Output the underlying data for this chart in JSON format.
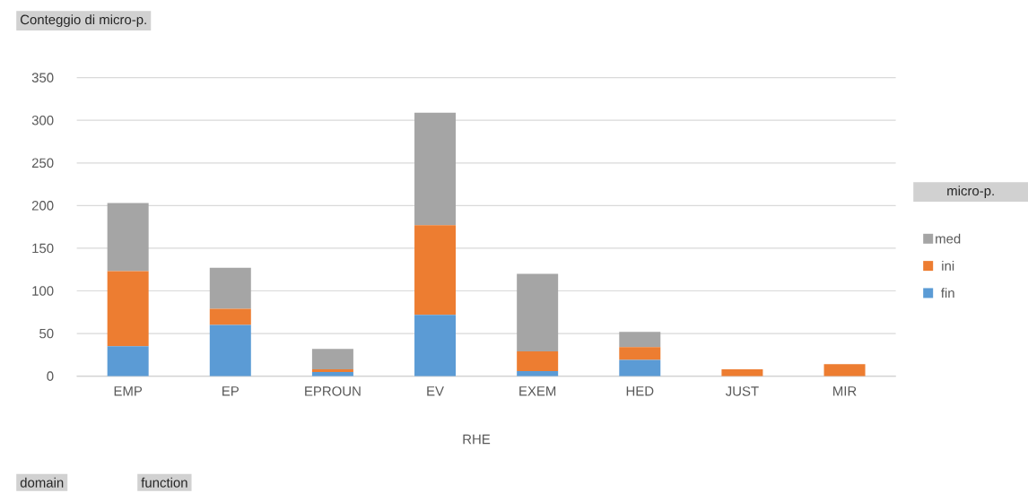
{
  "chart_data": {
    "type": "bar",
    "stacked": true,
    "title": "Conteggio di micro-p.",
    "xlabel": "RHE",
    "legend_title": "micro-p.",
    "categories": [
      "EMP",
      "EP",
      "EPROUN",
      "EV",
      "EXEM",
      "HED",
      "JUST",
      "MIR"
    ],
    "series": [
      {
        "name": "fin",
        "color": "#5b9bd5",
        "values": [
          35,
          60,
          5,
          72,
          6,
          19,
          0,
          0
        ]
      },
      {
        "name": "ini",
        "color": "#ed7d31",
        "values": [
          88,
          19,
          3,
          105,
          23,
          15,
          8,
          14
        ]
      },
      {
        "name": "med",
        "color": "#a5a5a5",
        "values": [
          80,
          48,
          24,
          132,
          91,
          18,
          0,
          0
        ]
      }
    ],
    "ylim": [
      0,
      350
    ],
    "yticks": [
      0,
      50,
      100,
      150,
      200,
      250,
      300,
      350
    ],
    "grid": "y",
    "legend": "right",
    "annotations": [
      "domain",
      "function"
    ]
  }
}
